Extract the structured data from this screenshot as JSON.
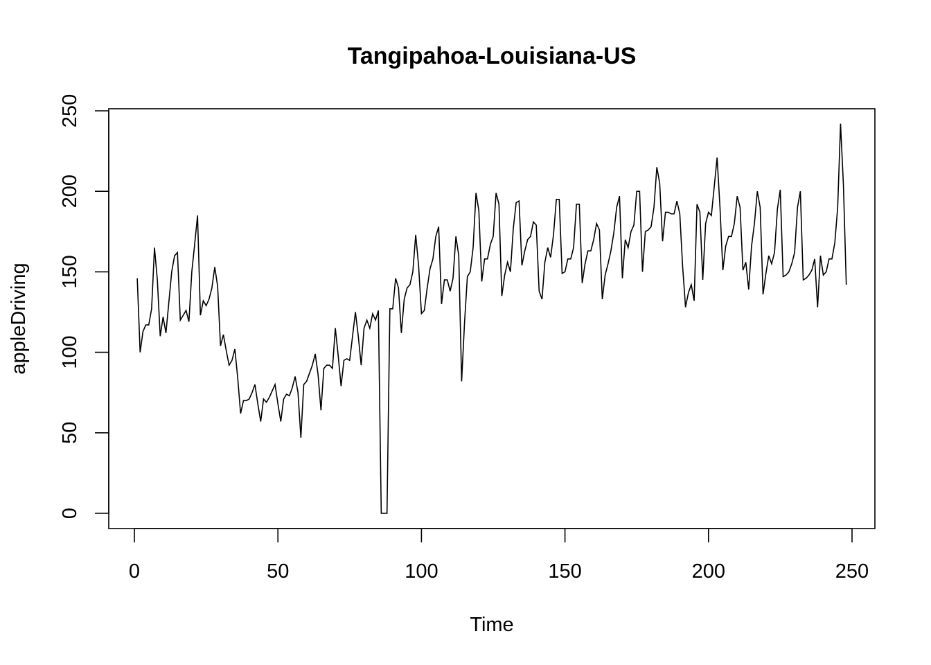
{
  "chart_data": {
    "type": "line",
    "title": "Tangipahoa-Louisiana-US",
    "xlabel": "Time",
    "ylabel": "appleDriving",
    "xlim": [
      1,
      248
    ],
    "ylim": [
      0,
      250
    ],
    "xticks": [
      0,
      50,
      100,
      150,
      200,
      250
    ],
    "yticks": [
      0,
      50,
      100,
      150,
      200,
      250
    ],
    "grid": false,
    "legend": "none",
    "series": [
      {
        "x_start": 1,
        "color": "#000000",
        "values": [
          146,
          100,
          113,
          117,
          117,
          127,
          165,
          145,
          110,
          122,
          112,
          131,
          150,
          160,
          162,
          120,
          123,
          126,
          119,
          150,
          167,
          185,
          123,
          132,
          129,
          133,
          140,
          153,
          141,
          104,
          111,
          101,
          92,
          95,
          102,
          84,
          62,
          70,
          70,
          71,
          75,
          80,
          68,
          57,
          71,
          69,
          72,
          76,
          80,
          68,
          57,
          71,
          74,
          73,
          78,
          85,
          75,
          47,
          80,
          82,
          87,
          92,
          99,
          86,
          64,
          90,
          92,
          92,
          90,
          115,
          98,
          79,
          95,
          96,
          95,
          110,
          125,
          110,
          92,
          115,
          120,
          115,
          124,
          120,
          126,
          0,
          0,
          0,
          127,
          127,
          146,
          140,
          112,
          133,
          140,
          142,
          150,
          173,
          154,
          124,
          126,
          140,
          152,
          158,
          172,
          178,
          130,
          145,
          145,
          138,
          146,
          172,
          160,
          82,
          118,
          147,
          150,
          165,
          199,
          188,
          144,
          158,
          158,
          167,
          172,
          199,
          192,
          135,
          148,
          156,
          150,
          177,
          193,
          194,
          154,
          163,
          170,
          172,
          181,
          179,
          138,
          133,
          156,
          165,
          159,
          173,
          195,
          195,
          149,
          150,
          158,
          158,
          165,
          192,
          192,
          143,
          155,
          163,
          163,
          170,
          180,
          176,
          133,
          148,
          155,
          163,
          174,
          190,
          197,
          146,
          170,
          165,
          175,
          179,
          200,
          200,
          150,
          175,
          176,
          178,
          190,
          215,
          205,
          169,
          187,
          187,
          186,
          186,
          194,
          186,
          153,
          128,
          137,
          142,
          132,
          192,
          187,
          145,
          180,
          187,
          185,
          203,
          221,
          190,
          151,
          166,
          172,
          172,
          180,
          197,
          190,
          151,
          156,
          139,
          166,
          180,
          200,
          190,
          136,
          149,
          160,
          155,
          162,
          189,
          201,
          147,
          148,
          150,
          155,
          162,
          190,
          200,
          145,
          146,
          148,
          151,
          158,
          128,
          160,
          148,
          150,
          158,
          158,
          168,
          190,
          242,
          204,
          142
        ]
      }
    ]
  }
}
